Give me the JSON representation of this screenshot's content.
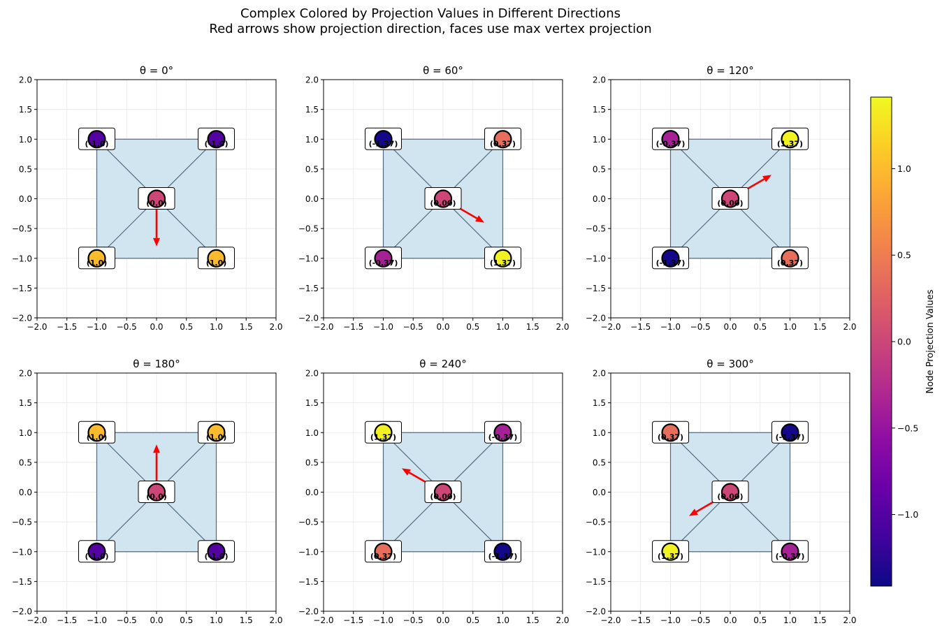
{
  "figure": {
    "title_line1": "Complex Colored by Projection Values in Different Directions",
    "title_line2": "Red arrows show projection direction, faces use max vertex projection"
  },
  "colors": {
    "face_fill": "#d1e5f0",
    "edge": "#4f6a80",
    "arrow": "#ff0000",
    "grid": "#e6e6e6",
    "label_box_edge": "#000000"
  },
  "colorbar": {
    "label": "Node Projection Values",
    "range": [
      -1.414,
      1.414
    ],
    "ticks": [
      -1.0,
      -0.5,
      0.0,
      0.5,
      1.0
    ],
    "tick_labels": [
      "−1.0",
      "−0.5",
      "0.0",
      "0.5",
      "1.0"
    ],
    "colormap": "plasma"
  },
  "chart_data": [
    {
      "type": "scatter",
      "title": "θ = 0°",
      "theta_deg": 0,
      "xlim": [
        -2,
        2
      ],
      "ylim": [
        -2,
        2
      ],
      "xticks": [
        "−2.0",
        "−1.5",
        "−1.0",
        "−0.5",
        "0.0",
        "0.5",
        "1.0",
        "1.5",
        "2.0"
      ],
      "yticks": [
        "−2.0",
        "−1.5",
        "−1.0",
        "−0.5",
        "0.0",
        "0.5",
        "1.0",
        "1.5",
        "2.0"
      ],
      "grid": true,
      "arrow": {
        "from": [
          0,
          0
        ],
        "to": [
          0,
          -0.8
        ]
      },
      "nodes": [
        {
          "x": -1,
          "y": 1,
          "value": -1.0,
          "label": "(-1.0)"
        },
        {
          "x": 1,
          "y": 1,
          "value": -1.0,
          "label": "(-1.0)"
        },
        {
          "x": 0,
          "y": 0,
          "value": 0.0,
          "label": "(0.0)"
        },
        {
          "x": -1,
          "y": -1,
          "value": 1.0,
          "label": "(1.0)"
        },
        {
          "x": 1,
          "y": -1,
          "value": 1.0,
          "label": "(1.0)"
        }
      ]
    },
    {
      "type": "scatter",
      "title": "θ = 60°",
      "theta_deg": 60,
      "xlim": [
        -2,
        2
      ],
      "ylim": [
        -2,
        2
      ],
      "xticks": [
        "−2.0",
        "−1.5",
        "−1.0",
        "−0.5",
        "0.0",
        "0.5",
        "1.0",
        "1.5",
        "2.0"
      ],
      "yticks": [
        "−2.0",
        "−1.5",
        "−1.0",
        "−0.5",
        "0.0",
        "0.5",
        "1.0",
        "1.5",
        "2.0"
      ],
      "grid": true,
      "arrow": {
        "from": [
          0,
          0
        ],
        "to": [
          0.69,
          -0.4
        ]
      },
      "nodes": [
        {
          "x": -1,
          "y": 1,
          "value": -1.37,
          "label": "(-1.37)"
        },
        {
          "x": 1,
          "y": 1,
          "value": 0.37,
          "label": "(0.37)"
        },
        {
          "x": 0,
          "y": 0,
          "value": 0.0,
          "label": "(0.00)"
        },
        {
          "x": -1,
          "y": -1,
          "value": -0.37,
          "label": "(-0.37)"
        },
        {
          "x": 1,
          "y": -1,
          "value": 1.37,
          "label": "(1.37)"
        }
      ]
    },
    {
      "type": "scatter",
      "title": "θ = 120°",
      "theta_deg": 120,
      "xlim": [
        -2,
        2
      ],
      "ylim": [
        -2,
        2
      ],
      "xticks": [
        "−2.0",
        "−1.5",
        "−1.0",
        "−0.5",
        "0.0",
        "0.5",
        "1.0",
        "1.5",
        "2.0"
      ],
      "yticks": [
        "−2.0",
        "−1.5",
        "−1.0",
        "−0.5",
        "0.0",
        "0.5",
        "1.0",
        "1.5",
        "2.0"
      ],
      "grid": true,
      "arrow": {
        "from": [
          0,
          0
        ],
        "to": [
          0.69,
          0.4
        ]
      },
      "nodes": [
        {
          "x": -1,
          "y": 1,
          "value": -0.37,
          "label": "(-0.37)"
        },
        {
          "x": 1,
          "y": 1,
          "value": 1.37,
          "label": "(1.37)"
        },
        {
          "x": 0,
          "y": 0,
          "value": 0.0,
          "label": "(0.00)"
        },
        {
          "x": -1,
          "y": -1,
          "value": -1.37,
          "label": "(-1.37)"
        },
        {
          "x": 1,
          "y": -1,
          "value": 0.37,
          "label": "(0.37)"
        }
      ]
    },
    {
      "type": "scatter",
      "title": "θ = 180°",
      "theta_deg": 180,
      "xlim": [
        -2,
        2
      ],
      "ylim": [
        -2,
        2
      ],
      "xticks": [
        "−2.0",
        "−1.5",
        "−1.0",
        "−0.5",
        "0.0",
        "0.5",
        "1.0",
        "1.5",
        "2.0"
      ],
      "yticks": [
        "−2.0",
        "−1.5",
        "−1.0",
        "−0.5",
        "0.0",
        "0.5",
        "1.0",
        "1.5",
        "2.0"
      ],
      "grid": true,
      "arrow": {
        "from": [
          0,
          0
        ],
        "to": [
          0,
          0.8
        ]
      },
      "nodes": [
        {
          "x": -1,
          "y": 1,
          "value": 1.0,
          "label": "(1.0)"
        },
        {
          "x": 1,
          "y": 1,
          "value": 1.0,
          "label": "(1.0)"
        },
        {
          "x": 0,
          "y": 0,
          "value": 0.0,
          "label": "(0.0)"
        },
        {
          "x": -1,
          "y": -1,
          "value": -1.0,
          "label": "(-1.0)"
        },
        {
          "x": 1,
          "y": -1,
          "value": -1.0,
          "label": "(-1.0)"
        }
      ]
    },
    {
      "type": "scatter",
      "title": "θ = 240°",
      "theta_deg": 240,
      "xlim": [
        -2,
        2
      ],
      "ylim": [
        -2,
        2
      ],
      "xticks": [
        "−2.0",
        "−1.5",
        "−1.0",
        "−0.5",
        "0.0",
        "0.5",
        "1.0",
        "1.5",
        "2.0"
      ],
      "yticks": [
        "−2.0",
        "−1.5",
        "−1.0",
        "−0.5",
        "0.0",
        "0.5",
        "1.0",
        "1.5",
        "2.0"
      ],
      "grid": true,
      "arrow": {
        "from": [
          0,
          0
        ],
        "to": [
          -0.69,
          0.4
        ]
      },
      "nodes": [
        {
          "x": -1,
          "y": 1,
          "value": 1.37,
          "label": "(1.37)"
        },
        {
          "x": 1,
          "y": 1,
          "value": -0.37,
          "label": "(-0.37)"
        },
        {
          "x": 0,
          "y": 0,
          "value": 0.0,
          "label": "(0.00)"
        },
        {
          "x": -1,
          "y": -1,
          "value": 0.37,
          "label": "(0.37)"
        },
        {
          "x": 1,
          "y": -1,
          "value": -1.37,
          "label": "(-1.37)"
        }
      ]
    },
    {
      "type": "scatter",
      "title": "θ = 300°",
      "theta_deg": 300,
      "xlim": [
        -2,
        2
      ],
      "ylim": [
        -2,
        2
      ],
      "xticks": [
        "−2.0",
        "−1.5",
        "−1.0",
        "−0.5",
        "0.0",
        "0.5",
        "1.0",
        "1.5",
        "2.0"
      ],
      "yticks": [
        "−2.0",
        "−1.5",
        "−1.0",
        "−0.5",
        "0.0",
        "0.5",
        "1.0",
        "1.5",
        "2.0"
      ],
      "grid": true,
      "arrow": {
        "from": [
          0,
          0
        ],
        "to": [
          -0.69,
          -0.4
        ]
      },
      "nodes": [
        {
          "x": -1,
          "y": 1,
          "value": 0.37,
          "label": "(0.37)"
        },
        {
          "x": 1,
          "y": 1,
          "value": -1.37,
          "label": "(-1.37)"
        },
        {
          "x": 0,
          "y": 0,
          "value": 0.0,
          "label": "(0.00)"
        },
        {
          "x": -1,
          "y": -1,
          "value": 1.37,
          "label": "(1.37)"
        },
        {
          "x": 1,
          "y": -1,
          "value": -0.37,
          "label": "(-0.37)"
        }
      ]
    }
  ]
}
